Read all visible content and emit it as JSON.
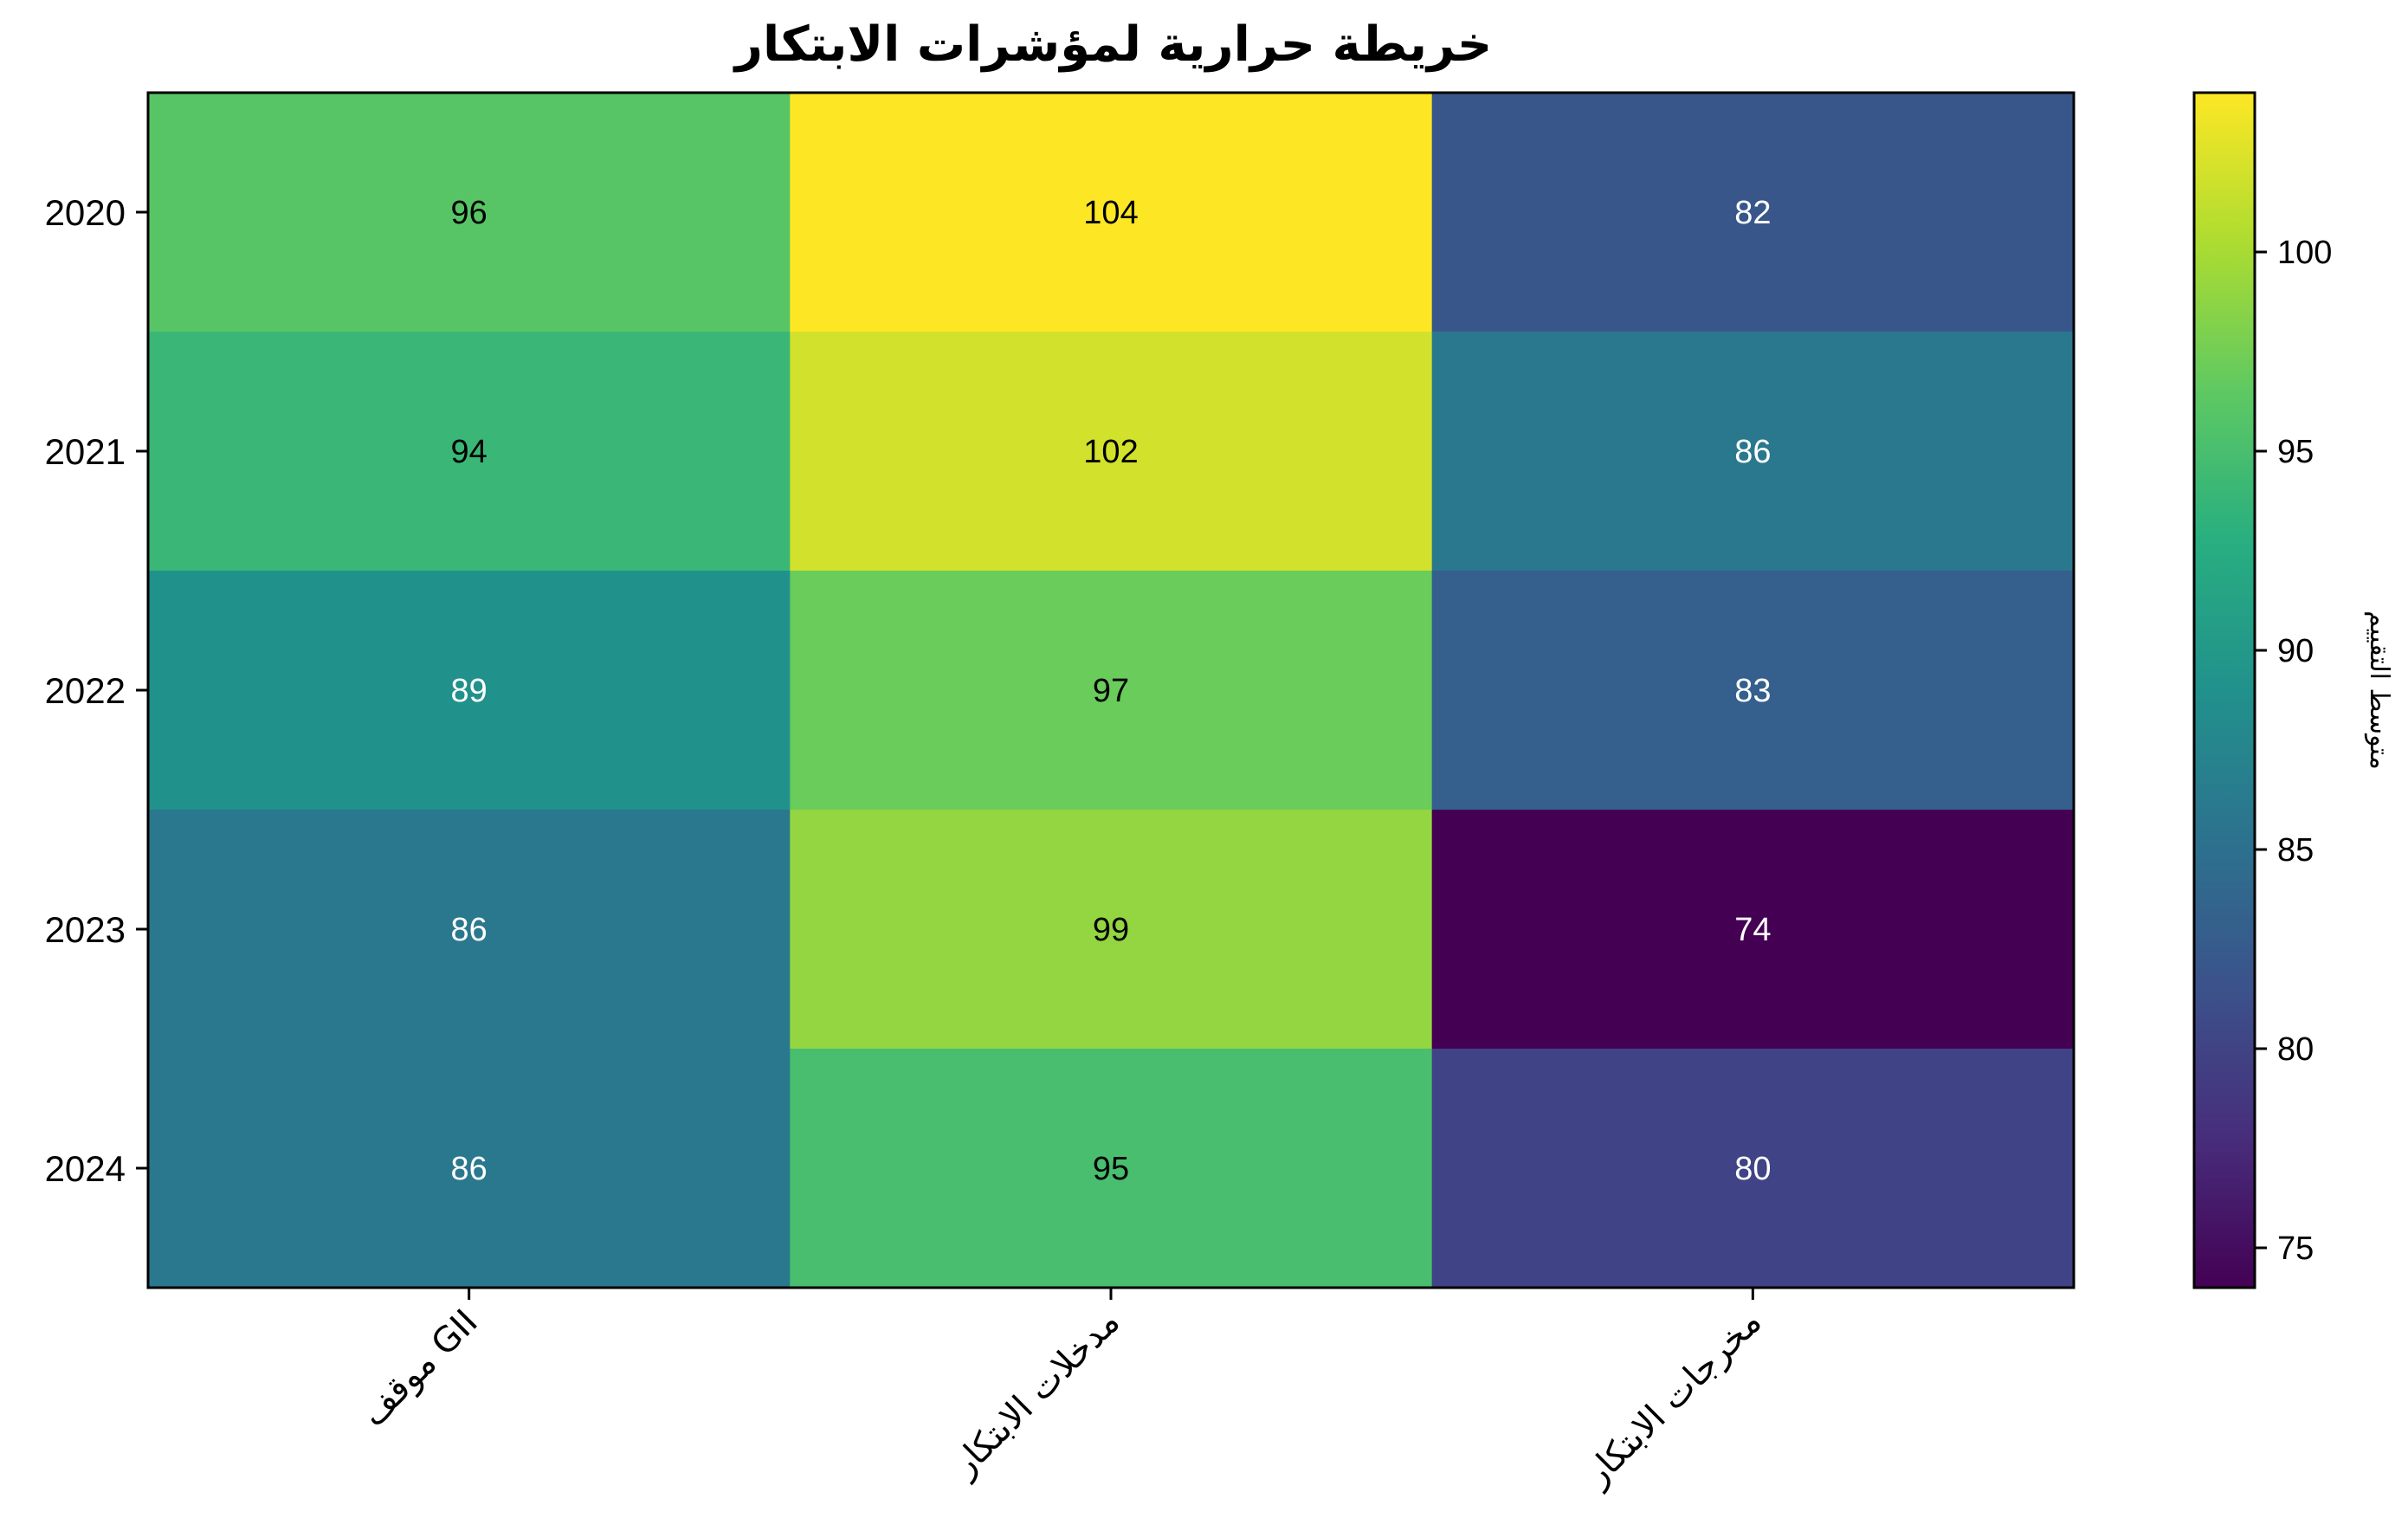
{
  "chart_data": {
    "type": "heatmap",
    "title": "خريطة حرارية لمؤشرات الابتكار",
    "x_categories": [
      "موقف GII",
      "مدخلات الابتكار",
      "مخرجات الابتكار"
    ],
    "y_categories": [
      "2020",
      "2021",
      "2022",
      "2023",
      "2024"
    ],
    "values": [
      [
        96,
        104,
        82
      ],
      [
        94,
        102,
        86
      ],
      [
        89,
        97,
        83
      ],
      [
        86,
        99,
        74
      ],
      [
        86,
        95,
        80
      ]
    ],
    "colormap": "viridis",
    "colorbar": {
      "label": "متوسط التقييم",
      "range": [
        74,
        104
      ],
      "ticks": [
        75,
        80,
        85,
        90,
        95,
        100
      ]
    },
    "cell_labels_shown": true,
    "grid": false
  }
}
